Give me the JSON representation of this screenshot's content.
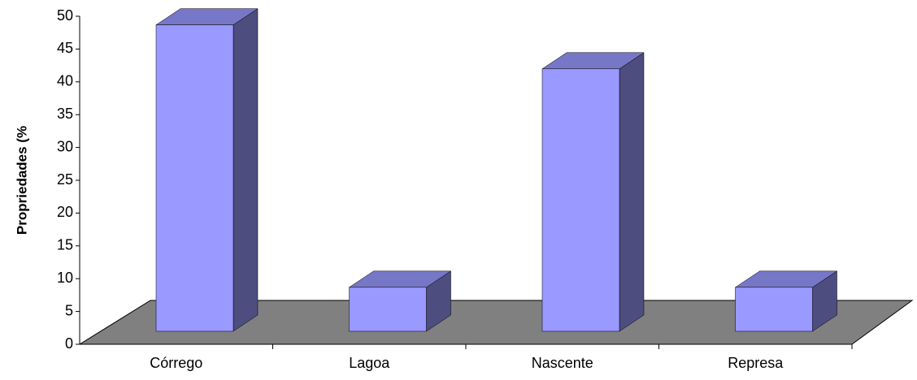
{
  "chart_data": {
    "type": "bar3d",
    "y_label": "Propriedades (%",
    "categories": [
      "Córrego",
      "Lagoa",
      "Nascente",
      "Represa"
    ],
    "values": [
      46.7,
      6.7,
      40,
      6.7
    ],
    "color": "#9999ff",
    "ylim": [
      0,
      50
    ],
    "yticks": [
      0,
      5,
      10,
      15,
      20,
      25,
      30,
      35,
      40,
      45,
      50
    ]
  }
}
